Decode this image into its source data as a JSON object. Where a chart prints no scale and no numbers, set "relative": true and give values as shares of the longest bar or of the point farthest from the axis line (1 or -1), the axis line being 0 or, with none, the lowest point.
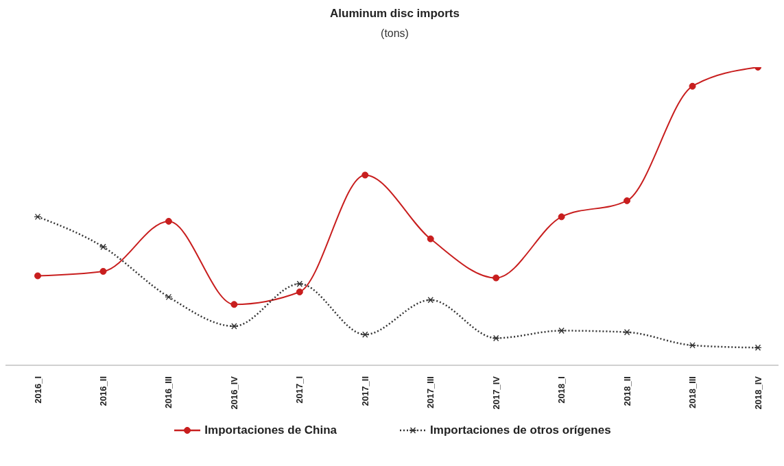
{
  "chart_data": {
    "type": "line",
    "title": "Aluminum disc imports",
    "subtitle": "(tons)",
    "relative": true,
    "categories": [
      "2016_I",
      "2016_II",
      "2016_III",
      "2016_IV",
      "2017_I",
      "2017_II",
      "2017_III",
      "2017_IV",
      "2018_I",
      "2018_II",
      "2018_III",
      "2018_IV"
    ],
    "series": [
      {
        "name": "Importaciones de China",
        "color": "#c81e1e",
        "marker": "circle",
        "line_style": "solid",
        "values": [
          0.3,
          0.315,
          0.483,
          0.204,
          0.246,
          0.638,
          0.424,
          0.293,
          0.498,
          0.552,
          0.936,
          1
        ]
      },
      {
        "name": "Importaciones de otros orígenes",
        "color": "#333333",
        "marker": "cross",
        "line_style": "dotted",
        "values": [
          0.498,
          0.397,
          0.229,
          0.131,
          0.273,
          0.103,
          0.219,
          0.091,
          0.116,
          0.111,
          0.067,
          0.059
        ]
      }
    ],
    "grid": false,
    "legend": "bottom"
  }
}
